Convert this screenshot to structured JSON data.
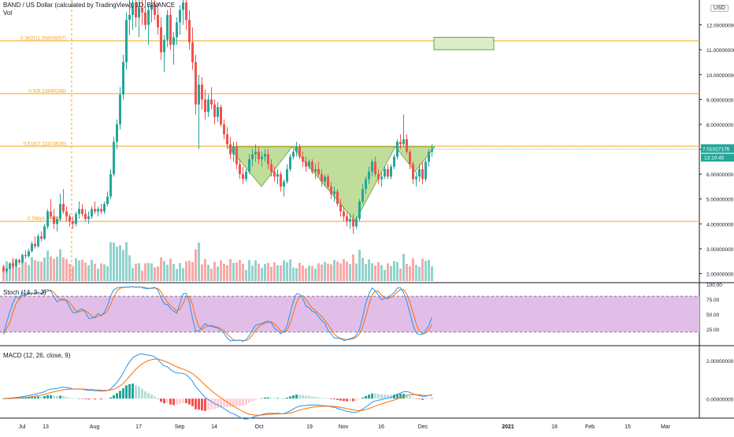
{
  "legend": {
    "title": "BAND / US Dollar (calculated by TradingView), 1D, BINANCE",
    "vol": "Vol",
    "stoch": "Stoch (14, 3, 3)",
    "macd": "MACD (12, 26, close, 9)"
  },
  "currency_badge": "USD",
  "price_badge": {
    "value": "7.01027176",
    "countdown": "13:10:45"
  },
  "colors": {
    "up": "#26a69a",
    "down": "#ef5350",
    "fib": "#f7a21b",
    "pattern_fill": "#8bc34a",
    "target_fill": "#dcedc8",
    "target_border": "#4caf50",
    "stoch_band": "#e1bee7",
    "stoch_k": "#2196f3",
    "stoch_d": "#ff6d00",
    "macd_line": "#2196f3",
    "signal_line": "#ff6d00"
  },
  "chart_data": [
    {
      "type": "candlestick",
      "title": "BAND / US Dollar (calculated by TradingView), 1D, BINANCE",
      "ylabel": "USD",
      "ylim": [
        1.7,
        13.0
      ],
      "y_ticks": [
        "2.00000000",
        "3.00000000",
        "4.00000000",
        "5.00000000",
        "6.00000000",
        "7.00000000",
        "8.00000000",
        "9.00000000",
        "10.00000000",
        "11.00000000",
        "12.00000000"
      ],
      "x_ticks": [
        "Jul",
        "13",
        "Aug",
        "17",
        "Sep",
        "14",
        "Oct",
        "19",
        "Nov",
        "16",
        "Dec",
        "2021",
        "18",
        "Feb",
        "15",
        "Mar"
      ],
      "fib_levels": [
        {
          "label": "0.382(11.35805857)",
          "value": 11.358
        },
        {
          "label": "0.5(9.23840248)",
          "value": 9.238
        },
        {
          "label": "0.618(7.11874639)",
          "value": 7.119
        },
        {
          "label": "0.786(4.10093...)",
          "value": 4.101
        }
      ],
      "pattern": "inverse-head-and-shoulders",
      "last_price": 7.01027176,
      "target_box": {
        "y_range": [
          11.0,
          11.5
        ]
      },
      "grid": false
    },
    {
      "type": "bar",
      "title": "Vol",
      "series": [
        {
          "values": "derived-from-candles"
        }
      ]
    },
    {
      "type": "line",
      "title": "Stoch (14, 3, 3)",
      "ylim": [
        0,
        100
      ],
      "y_ticks": [
        "25.00",
        "50.00",
        "75.00",
        "100.00"
      ],
      "band": [
        20,
        80
      ]
    },
    {
      "type": "line",
      "title": "MACD (12, 26, close, 9)",
      "ylim": [
        -0.9,
        2.7
      ],
      "y_ticks": [
        "0.00000000",
        "2.00000000"
      ]
    }
  ],
  "ohlc": [
    [
      2.25,
      2.35,
      2.05,
      2.1
    ],
    [
      2.1,
      2.25,
      2.0,
      2.2
    ],
    [
      2.2,
      2.45,
      2.15,
      2.4
    ],
    [
      2.4,
      2.5,
      2.2,
      2.3
    ],
    [
      2.3,
      2.6,
      2.25,
      2.55
    ],
    [
      2.55,
      2.6,
      2.35,
      2.45
    ],
    [
      2.45,
      2.8,
      2.4,
      2.75
    ],
    [
      2.75,
      2.95,
      2.6,
      2.7
    ],
    [
      2.7,
      3.0,
      2.65,
      2.9
    ],
    [
      2.9,
      3.3,
      2.85,
      3.2
    ],
    [
      3.2,
      3.5,
      3.0,
      3.1
    ],
    [
      3.1,
      3.6,
      3.05,
      3.5
    ],
    [
      3.5,
      3.7,
      3.3,
      3.4
    ],
    [
      3.4,
      4.0,
      3.35,
      3.9
    ],
    [
      3.9,
      4.6,
      3.8,
      4.5
    ],
    [
      4.5,
      5.0,
      4.2,
      4.3
    ],
    [
      4.3,
      4.6,
      3.8,
      4.0
    ],
    [
      4.0,
      4.3,
      3.7,
      4.2
    ],
    [
      4.2,
      5.2,
      4.1,
      4.8
    ],
    [
      4.8,
      5.4,
      4.4,
      4.5
    ],
    [
      4.5,
      4.7,
      4.1,
      4.3
    ],
    [
      4.3,
      4.4,
      3.9,
      4.1
    ],
    [
      4.1,
      4.3,
      3.8,
      4.0
    ],
    [
      4.0,
      4.5,
      3.9,
      4.4
    ],
    [
      4.4,
      4.9,
      4.2,
      4.6
    ],
    [
      4.6,
      4.8,
      4.3,
      4.4
    ],
    [
      4.4,
      4.6,
      4.1,
      4.2
    ],
    [
      4.2,
      4.5,
      4.0,
      4.3
    ],
    [
      4.3,
      4.7,
      4.2,
      4.6
    ],
    [
      4.6,
      4.9,
      4.4,
      4.5
    ],
    [
      4.5,
      4.7,
      4.3,
      4.6
    ],
    [
      4.6,
      4.8,
      4.4,
      4.5
    ],
    [
      4.5,
      4.9,
      4.4,
      4.8
    ],
    [
      4.8,
      5.3,
      4.7,
      5.1
    ],
    [
      5.1,
      6.2,
      5.0,
      6.0
    ],
    [
      6.0,
      7.5,
      5.9,
      7.3
    ],
    [
      7.3,
      8.2,
      7.0,
      8.0
    ],
    [
      8.0,
      9.5,
      7.8,
      9.2
    ],
    [
      9.2,
      10.8,
      9.0,
      10.5
    ],
    [
      10.5,
      12.5,
      10.2,
      12.2
    ],
    [
      12.2,
      13.0,
      11.6,
      12.4
    ],
    [
      12.4,
      13.0,
      11.8,
      12.9
    ],
    [
      12.9,
      13.0,
      11.9,
      12.3
    ],
    [
      12.3,
      13.0,
      11.5,
      12.7
    ],
    [
      12.7,
      13.0,
      12.0,
      12.5
    ],
    [
      12.5,
      13.0,
      11.8,
      12.0
    ],
    [
      12.0,
      12.8,
      11.2,
      12.6
    ],
    [
      12.6,
      13.0,
      12.1,
      12.8
    ],
    [
      12.8,
      13.0,
      12.2,
      12.4
    ],
    [
      12.4,
      12.9,
      11.6,
      11.9
    ],
    [
      11.9,
      12.3,
      10.6,
      10.9
    ],
    [
      10.9,
      11.6,
      10.1,
      11.4
    ],
    [
      11.4,
      12.6,
      11.1,
      12.4
    ],
    [
      12.4,
      12.7,
      11.0,
      11.2
    ],
    [
      11.2,
      11.7,
      10.4,
      11.5
    ],
    [
      11.5,
      12.3,
      11.2,
      12.1
    ],
    [
      12.1,
      12.8,
      11.6,
      12.6
    ],
    [
      12.6,
      13.0,
      12.0,
      12.9
    ],
    [
      12.9,
      13.0,
      11.8,
      12.2
    ],
    [
      12.2,
      12.6,
      11.0,
      11.3
    ],
    [
      11.3,
      11.9,
      10.2,
      10.5
    ],
    [
      10.5,
      10.8,
      8.4,
      8.8
    ],
    [
      8.8,
      10.0,
      7.0,
      9.6
    ],
    [
      9.6,
      9.9,
      8.6,
      9.0
    ],
    [
      9.0,
      9.4,
      8.2,
      8.5
    ],
    [
      8.5,
      9.2,
      8.3,
      9.0
    ],
    [
      9.0,
      9.5,
      8.6,
      8.8
    ],
    [
      8.8,
      9.0,
      8.0,
      8.3
    ],
    [
      8.3,
      8.9,
      8.1,
      8.7
    ],
    [
      8.7,
      8.8,
      7.9,
      8.0
    ],
    [
      8.0,
      8.2,
      7.4,
      7.6
    ],
    [
      7.6,
      7.9,
      7.0,
      7.2
    ],
    [
      7.2,
      7.5,
      6.6,
      6.8
    ],
    [
      6.8,
      7.3,
      6.5,
      7.1
    ],
    [
      7.1,
      7.3,
      6.2,
      6.4
    ],
    [
      6.4,
      6.6,
      5.8,
      6.0
    ],
    [
      6.0,
      6.3,
      5.6,
      5.8
    ],
    [
      5.8,
      6.2,
      5.7,
      6.1
    ],
    [
      6.1,
      6.8,
      6.0,
      6.6
    ],
    [
      6.6,
      7.0,
      6.3,
      6.8
    ],
    [
      6.8,
      7.2,
      6.5,
      6.9
    ],
    [
      6.9,
      7.1,
      6.4,
      6.6
    ],
    [
      6.6,
      6.9,
      6.3,
      6.7
    ],
    [
      6.7,
      7.0,
      6.5,
      6.8
    ],
    [
      6.8,
      7.0,
      6.2,
      6.4
    ],
    [
      6.4,
      6.6,
      5.9,
      6.1
    ],
    [
      6.1,
      6.3,
      5.7,
      5.9
    ],
    [
      5.9,
      6.2,
      5.6,
      6.0
    ],
    [
      6.0,
      6.1,
      5.3,
      5.5
    ],
    [
      5.5,
      5.8,
      5.1,
      5.7
    ],
    [
      5.7,
      6.4,
      5.6,
      6.2
    ],
    [
      6.2,
      6.8,
      6.1,
      6.7
    ],
    [
      6.7,
      7.0,
      6.6,
      6.9
    ],
    [
      6.9,
      7.3,
      6.7,
      7.1
    ],
    [
      7.1,
      7.2,
      6.6,
      6.7
    ],
    [
      6.7,
      6.9,
      6.3,
      6.5
    ],
    [
      6.5,
      6.7,
      6.1,
      6.3
    ],
    [
      6.3,
      6.6,
      6.2,
      6.5
    ],
    [
      6.5,
      6.6,
      6.0,
      6.1
    ],
    [
      6.1,
      6.4,
      5.8,
      6.2
    ],
    [
      6.2,
      6.5,
      5.9,
      6.0
    ],
    [
      6.0,
      6.2,
      5.5,
      5.7
    ],
    [
      5.7,
      6.0,
      5.5,
      5.9
    ],
    [
      5.9,
      6.0,
      5.4,
      5.5
    ],
    [
      5.5,
      5.7,
      5.0,
      5.2
    ],
    [
      5.2,
      5.5,
      4.9,
      5.3
    ],
    [
      5.3,
      5.4,
      4.7,
      4.8
    ],
    [
      4.8,
      5.0,
      4.3,
      4.5
    ],
    [
      4.5,
      4.7,
      4.1,
      4.3
    ],
    [
      4.3,
      4.5,
      3.9,
      4.1
    ],
    [
      4.1,
      4.4,
      3.8,
      4.2
    ],
    [
      4.2,
      4.4,
      3.6,
      3.9
    ],
    [
      3.9,
      4.3,
      3.8,
      4.2
    ],
    [
      4.2,
      5.0,
      4.1,
      4.9
    ],
    [
      4.9,
      5.6,
      4.8,
      5.4
    ],
    [
      5.4,
      5.9,
      5.2,
      5.8
    ],
    [
      5.8,
      6.3,
      5.6,
      6.1
    ],
    [
      6.1,
      6.6,
      5.9,
      6.5
    ],
    [
      6.5,
      6.7,
      5.9,
      6.0
    ],
    [
      6.0,
      6.2,
      5.6,
      5.8
    ],
    [
      5.8,
      6.1,
      5.5,
      5.9
    ],
    [
      5.9,
      6.3,
      5.8,
      6.2
    ],
    [
      6.2,
      6.4,
      5.8,
      5.9
    ],
    [
      5.9,
      6.4,
      5.8,
      6.3
    ],
    [
      6.3,
      6.8,
      6.2,
      6.7
    ],
    [
      6.7,
      7.4,
      6.6,
      7.3
    ],
    [
      7.3,
      7.6,
      7.0,
      7.2
    ],
    [
      7.2,
      8.4,
      7.1,
      7.4
    ],
    [
      7.4,
      7.6,
      6.8,
      6.9
    ],
    [
      6.9,
      7.0,
      6.2,
      6.4
    ],
    [
      6.4,
      6.5,
      5.6,
      5.8
    ],
    [
      5.8,
      6.1,
      5.5,
      5.9
    ],
    [
      5.9,
      6.4,
      5.7,
      6.2
    ],
    [
      6.2,
      6.5,
      5.6,
      5.8
    ],
    [
      5.8,
      6.6,
      5.7,
      6.5
    ],
    [
      6.5,
      7.0,
      6.3,
      6.9
    ],
    [
      6.9,
      7.2,
      6.7,
      7.0
    ]
  ]
}
